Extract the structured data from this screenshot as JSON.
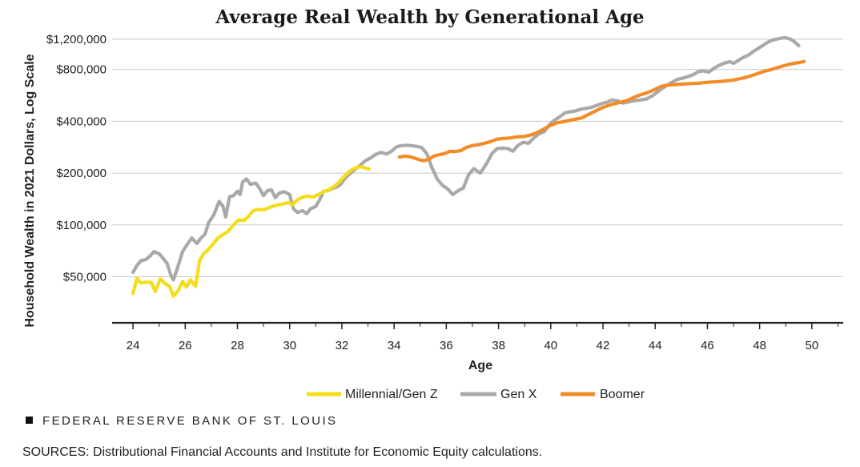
{
  "footer": {
    "org": "FEDERAL RESERVE BANK OF ST. LOUIS"
  },
  "source_note": "SOURCES: Distributional Financial Accounts and Institute for Economic Equity calculations.",
  "chart_data": {
    "type": "line",
    "title": "Average Real Wealth by Generational Age",
    "xlabel": "Age",
    "ylabel": "Household Wealth in 2021 Dollars, Log Scale",
    "yscale": "log",
    "grid": "horizontal",
    "legend_position": "bottom-center",
    "xlim": [
      23.2,
      51.2
    ],
    "ylim": [
      27000,
      1500000
    ],
    "xticks": [
      24,
      26,
      28,
      30,
      32,
      34,
      36,
      38,
      40,
      42,
      44,
      46,
      48,
      50
    ],
    "yticks": [
      {
        "value": 50000,
        "label": "$50,000"
      },
      {
        "value": 100000,
        "label": "$100,000"
      },
      {
        "value": 200000,
        "label": "$200,000"
      },
      {
        "value": 400000,
        "label": "$400,000"
      },
      {
        "value": 800000,
        "label": "$800,000"
      },
      {
        "value": 1200000,
        "label": "$1,200,000"
      }
    ],
    "series": [
      {
        "name": "Millennial/Gen Z",
        "color": "#f5dd1c",
        "points": [
          [
            24.0,
            40000
          ],
          [
            24.15,
            49000
          ],
          [
            24.3,
            46000
          ],
          [
            24.5,
            46500
          ],
          [
            24.7,
            46500
          ],
          [
            24.85,
            41000
          ],
          [
            25.05,
            48500
          ],
          [
            25.25,
            45500
          ],
          [
            25.4,
            44000
          ],
          [
            25.55,
            38500
          ],
          [
            25.75,
            42000
          ],
          [
            25.9,
            47000
          ],
          [
            26.05,
            43500
          ],
          [
            26.2,
            48000
          ],
          [
            26.4,
            44000
          ],
          [
            26.55,
            62000
          ],
          [
            26.7,
            68000
          ],
          [
            26.85,
            71000
          ],
          [
            27.05,
            77000
          ],
          [
            27.25,
            84000
          ],
          [
            27.45,
            88000
          ],
          [
            27.65,
            92000
          ],
          [
            27.85,
            100000
          ],
          [
            28.05,
            107000
          ],
          [
            28.25,
            106000
          ],
          [
            28.45,
            113000
          ],
          [
            28.6,
            121000
          ],
          [
            28.8,
            123000
          ],
          [
            29.0,
            122000
          ],
          [
            29.2,
            126000
          ],
          [
            29.4,
            129000
          ],
          [
            29.6,
            131000
          ],
          [
            29.8,
            133000
          ],
          [
            29.95,
            135000
          ],
          [
            30.1,
            131000
          ],
          [
            30.3,
            140000
          ],
          [
            30.5,
            145000
          ],
          [
            30.7,
            147000
          ],
          [
            30.9,
            145000
          ],
          [
            31.1,
            150000
          ],
          [
            31.3,
            156000
          ],
          [
            31.5,
            160000
          ],
          [
            31.7,
            167000
          ],
          [
            31.9,
            178000
          ],
          [
            32.1,
            192000
          ],
          [
            32.3,
            205000
          ],
          [
            32.5,
            214000
          ],
          [
            32.7,
            218000
          ],
          [
            32.9,
            214000
          ],
          [
            33.05,
            211000
          ]
        ]
      },
      {
        "name": "Gen X",
        "color": "#a9a9a9",
        "points": [
          [
            24.0,
            53000
          ],
          [
            24.15,
            58000
          ],
          [
            24.3,
            62000
          ],
          [
            24.5,
            63000
          ],
          [
            24.65,
            66000
          ],
          [
            24.8,
            70000
          ],
          [
            25.0,
            68000
          ],
          [
            25.15,
            64000
          ],
          [
            25.3,
            60000
          ],
          [
            25.45,
            51000
          ],
          [
            25.55,
            48000
          ],
          [
            25.7,
            56000
          ],
          [
            25.9,
            70000
          ],
          [
            26.05,
            76000
          ],
          [
            26.25,
            84000
          ],
          [
            26.45,
            78000
          ],
          [
            26.6,
            84000
          ],
          [
            26.75,
            88000
          ],
          [
            26.9,
            103000
          ],
          [
            27.1,
            115000
          ],
          [
            27.3,
            137000
          ],
          [
            27.45,
            128000
          ],
          [
            27.55,
            111000
          ],
          [
            27.7,
            146000
          ],
          [
            27.85,
            148000
          ],
          [
            28.0,
            157000
          ],
          [
            28.1,
            150000
          ],
          [
            28.2,
            178000
          ],
          [
            28.35,
            185000
          ],
          [
            28.5,
            172000
          ],
          [
            28.7,
            175000
          ],
          [
            28.85,
            163000
          ],
          [
            29.0,
            148000
          ],
          [
            29.15,
            158000
          ],
          [
            29.3,
            160000
          ],
          [
            29.45,
            144000
          ],
          [
            29.6,
            153000
          ],
          [
            29.8,
            156000
          ],
          [
            30.0,
            150000
          ],
          [
            30.15,
            124000
          ],
          [
            30.3,
            118000
          ],
          [
            30.5,
            121000
          ],
          [
            30.65,
            116000
          ],
          [
            30.8,
            124000
          ],
          [
            31.0,
            128000
          ],
          [
            31.15,
            140000
          ],
          [
            31.3,
            157000
          ],
          [
            31.45,
            158000
          ],
          [
            31.65,
            163000
          ],
          [
            31.8,
            166000
          ],
          [
            31.95,
            172000
          ],
          [
            32.1,
            185000
          ],
          [
            32.3,
            198000
          ],
          [
            32.5,
            210000
          ],
          [
            32.7,
            222000
          ],
          [
            32.9,
            236000
          ],
          [
            33.1,
            245000
          ],
          [
            33.3,
            257000
          ],
          [
            33.5,
            264000
          ],
          [
            33.7,
            258000
          ],
          [
            33.9,
            268000
          ],
          [
            34.1,
            284000
          ],
          [
            34.3,
            289000
          ],
          [
            34.55,
            290000
          ],
          [
            34.8,
            287000
          ],
          [
            35.05,
            282000
          ],
          [
            35.25,
            260000
          ],
          [
            35.45,
            215000
          ],
          [
            35.65,
            185000
          ],
          [
            35.85,
            170000
          ],
          [
            36.05,
            162000
          ],
          [
            36.25,
            150000
          ],
          [
            36.45,
            158000
          ],
          [
            36.65,
            164000
          ],
          [
            36.85,
            195000
          ],
          [
            37.05,
            212000
          ],
          [
            37.3,
            200000
          ],
          [
            37.55,
            228000
          ],
          [
            37.75,
            260000
          ],
          [
            37.95,
            278000
          ],
          [
            38.15,
            279000
          ],
          [
            38.35,
            278000
          ],
          [
            38.55,
            268000
          ],
          [
            38.75,
            290000
          ],
          [
            38.95,
            302000
          ],
          [
            39.15,
            298000
          ],
          [
            39.35,
            320000
          ],
          [
            39.55,
            338000
          ],
          [
            39.75,
            348000
          ],
          [
            39.95,
            382000
          ],
          [
            40.15,
            406000
          ],
          [
            40.35,
            425000
          ],
          [
            40.55,
            448000
          ],
          [
            40.75,
            454000
          ],
          [
            40.95,
            459000
          ],
          [
            41.15,
            470000
          ],
          [
            41.35,
            475000
          ],
          [
            41.55,
            482000
          ],
          [
            41.75,
            494000
          ],
          [
            41.95,
            506000
          ],
          [
            42.15,
            516000
          ],
          [
            42.35,
            532000
          ],
          [
            42.55,
            526000
          ],
          [
            42.75,
            510000
          ],
          [
            42.95,
            517000
          ],
          [
            43.15,
            525000
          ],
          [
            43.4,
            531000
          ],
          [
            43.65,
            538000
          ],
          [
            43.9,
            563000
          ],
          [
            44.15,
            602000
          ],
          [
            44.4,
            640000
          ],
          [
            44.65,
            674000
          ],
          [
            44.85,
            700000
          ],
          [
            45.05,
            712000
          ],
          [
            45.25,
            727000
          ],
          [
            45.45,
            745000
          ],
          [
            45.65,
            775000
          ],
          [
            45.85,
            785000
          ],
          [
            46.05,
            772000
          ],
          [
            46.25,
            812000
          ],
          [
            46.45,
            845000
          ],
          [
            46.65,
            870000
          ],
          [
            46.85,
            887000
          ],
          [
            47.0,
            869000
          ],
          [
            47.15,
            895000
          ],
          [
            47.35,
            935000
          ],
          [
            47.55,
            965000
          ],
          [
            47.75,
            1015000
          ],
          [
            47.95,
            1060000
          ],
          [
            48.15,
            1110000
          ],
          [
            48.35,
            1160000
          ],
          [
            48.55,
            1190000
          ],
          [
            48.75,
            1210000
          ],
          [
            48.95,
            1225000
          ],
          [
            49.15,
            1205000
          ],
          [
            49.3,
            1170000
          ],
          [
            49.5,
            1100000
          ]
        ]
      },
      {
        "name": "Boomer",
        "color": "#f28c28",
        "points": [
          [
            34.2,
            248000
          ],
          [
            34.4,
            251000
          ],
          [
            34.6,
            249000
          ],
          [
            34.8,
            244000
          ],
          [
            35.0,
            238000
          ],
          [
            35.15,
            236000
          ],
          [
            35.35,
            242000
          ],
          [
            35.55,
            252000
          ],
          [
            35.75,
            256000
          ],
          [
            35.95,
            260000
          ],
          [
            36.15,
            268000
          ],
          [
            36.35,
            267000
          ],
          [
            36.55,
            270000
          ],
          [
            36.75,
            281000
          ],
          [
            37.0,
            289000
          ],
          [
            37.2,
            292000
          ],
          [
            37.45,
            298000
          ],
          [
            37.7,
            305000
          ],
          [
            37.95,
            315000
          ],
          [
            38.2,
            318000
          ],
          [
            38.45,
            320000
          ],
          [
            38.7,
            325000
          ],
          [
            38.95,
            326000
          ],
          [
            39.2,
            332000
          ],
          [
            39.45,
            342000
          ],
          [
            39.7,
            358000
          ],
          [
            39.95,
            376000
          ],
          [
            40.2,
            390000
          ],
          [
            40.45,
            397000
          ],
          [
            40.7,
            404000
          ],
          [
            40.95,
            411000
          ],
          [
            41.2,
            419000
          ],
          [
            41.45,
            438000
          ],
          [
            41.7,
            458000
          ],
          [
            41.95,
            478000
          ],
          [
            42.2,
            494000
          ],
          [
            42.45,
            507000
          ],
          [
            42.7,
            516000
          ],
          [
            42.95,
            530000
          ],
          [
            43.2,
            552000
          ],
          [
            43.45,
            571000
          ],
          [
            43.7,
            586000
          ],
          [
            43.95,
            608000
          ],
          [
            44.2,
            635000
          ],
          [
            44.45,
            648000
          ],
          [
            44.7,
            652000
          ],
          [
            44.95,
            657000
          ],
          [
            45.2,
            660000
          ],
          [
            45.45,
            663000
          ],
          [
            45.7,
            666000
          ],
          [
            45.95,
            673000
          ],
          [
            46.2,
            677000
          ],
          [
            46.45,
            680000
          ],
          [
            46.7,
            686000
          ],
          [
            46.95,
            692000
          ],
          [
            47.2,
            705000
          ],
          [
            47.45,
            718000
          ],
          [
            47.7,
            738000
          ],
          [
            47.95,
            760000
          ],
          [
            48.2,
            781000
          ],
          [
            48.45,
            800000
          ],
          [
            48.7,
            822000
          ],
          [
            48.95,
            842000
          ],
          [
            49.2,
            861000
          ],
          [
            49.45,
            875000
          ],
          [
            49.7,
            888000
          ]
        ]
      }
    ]
  }
}
